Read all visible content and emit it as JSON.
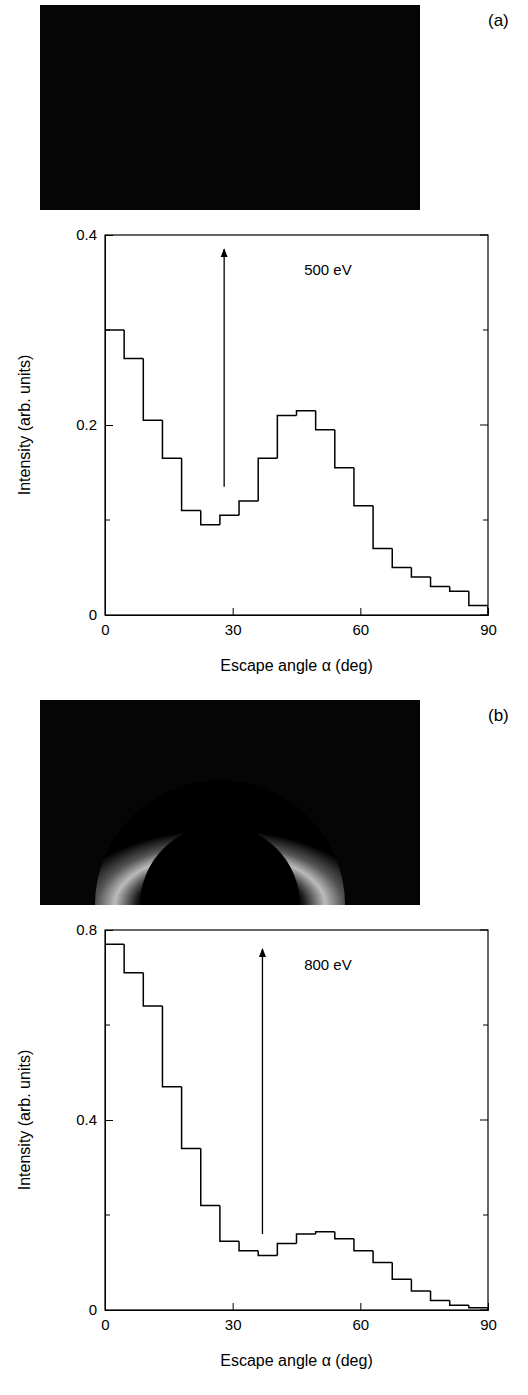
{
  "chart_data": [
    {
      "type": "histogram",
      "panel": "(a)",
      "annotation": "500 eV",
      "x_label": "Escape angle α (deg)",
      "y_label": "Intensity (arb. units)",
      "bins": [
        0,
        4.5,
        9,
        13.5,
        18,
        22.5,
        27,
        31.5,
        36,
        40.5,
        45,
        49.5,
        54,
        58.5,
        63,
        67.5,
        72,
        76.5,
        81,
        85.5,
        90
      ],
      "values": [
        0.3,
        0.27,
        0.205,
        0.165,
        0.11,
        0.095,
        0.105,
        0.12,
        0.165,
        0.21,
        0.215,
        0.195,
        0.155,
        0.115,
        0.07,
        0.05,
        0.04,
        0.03,
        0.025,
        0.01
      ],
      "arrow": {
        "x": 28,
        "y_start": 0.135,
        "y_end": 0.385
      },
      "xlim": [
        0,
        90
      ],
      "xticks": [
        0,
        30,
        60,
        90
      ],
      "ylim": [
        0,
        0.4
      ],
      "yticks": [
        0,
        0.2,
        0.4
      ],
      "minor_yticks": [
        0.1,
        0.3
      ],
      "color": "#000000"
    },
    {
      "type": "histogram",
      "panel": "(b)",
      "annotation": "800 eV",
      "x_label": "Escape angle α (deg)",
      "y_label": "Intensity (arb. units)",
      "bins": [
        0,
        4.5,
        9,
        13.5,
        18,
        22.5,
        27,
        31.5,
        36,
        40.5,
        45,
        49.5,
        54,
        58.5,
        63,
        67.5,
        72,
        76.5,
        81,
        85.5,
        90
      ],
      "values": [
        0.77,
        0.71,
        0.64,
        0.47,
        0.34,
        0.22,
        0.145,
        0.125,
        0.115,
        0.14,
        0.16,
        0.165,
        0.15,
        0.125,
        0.1,
        0.065,
        0.04,
        0.02,
        0.01,
        0.005
      ],
      "arrow": {
        "x": 37,
        "y_start": 0.16,
        "y_end": 0.76
      },
      "xlim": [
        0,
        90
      ],
      "xticks": [
        0,
        30,
        60,
        90
      ],
      "ylim": [
        0,
        0.8
      ],
      "yticks": [
        0,
        0.4,
        0.8
      ],
      "minor_yticks": [
        0.2,
        0.6
      ],
      "color": "#000000"
    }
  ]
}
